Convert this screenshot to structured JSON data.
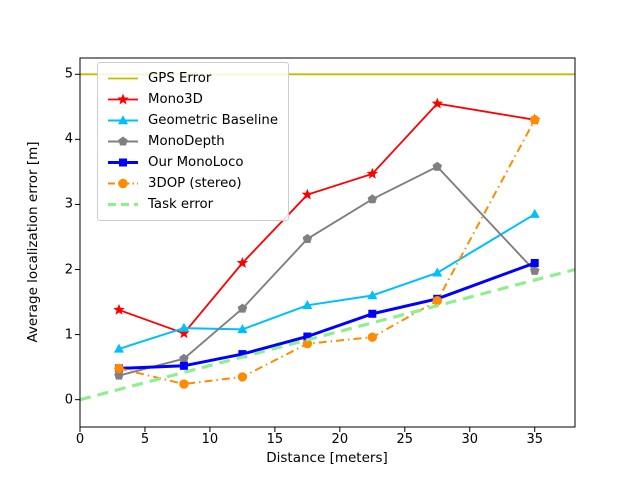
{
  "chart_data": {
    "type": "line",
    "title": "",
    "xlabel": "Distance [meters]",
    "ylabel": "Average localization error [m]",
    "xlim": [
      0,
      38.1
    ],
    "ylim": [
      -0.42,
      5.25
    ],
    "xticks": [
      0,
      5,
      10,
      15,
      20,
      25,
      30,
      35
    ],
    "yticks": [
      0,
      1,
      2,
      3,
      4,
      5
    ],
    "grid": false,
    "legend_position": "upper-left",
    "x": [
      3,
      8,
      12.5,
      17.5,
      22.5,
      27.5,
      35
    ],
    "series": [
      {
        "name": "GPS Error",
        "color": "#bfbf00",
        "style": "solid",
        "marker": "none",
        "width": 1.8,
        "x": [
          0,
          38.1
        ],
        "values": [
          5.0,
          5.0
        ]
      },
      {
        "name": "Mono3D",
        "color": "#ff0000",
        "style": "solid",
        "marker": "star",
        "width": 1.8,
        "values": [
          1.38,
          1.02,
          2.1,
          3.15,
          3.47,
          4.55,
          4.3
        ]
      },
      {
        "name": "Geometric Baseline",
        "color": "#00bfff",
        "style": "solid",
        "marker": "triangle",
        "width": 2.0,
        "values": [
          0.78,
          1.1,
          1.08,
          1.45,
          1.6,
          1.95,
          2.85
        ]
      },
      {
        "name": "MonoDepth",
        "color": "#808080",
        "style": "solid",
        "marker": "pentagon",
        "width": 1.9,
        "values": [
          0.37,
          0.63,
          1.4,
          2.47,
          3.08,
          3.58,
          1.98
        ]
      },
      {
        "name": "Our MonoLoco",
        "color": "#0000ff",
        "style": "solid",
        "marker": "square",
        "width": 3.0,
        "values": [
          0.48,
          0.52,
          0.7,
          0.97,
          1.32,
          1.55,
          2.1
        ]
      },
      {
        "name": "3DOP (stereo)",
        "color": "#ff8c00",
        "style": "dashdot",
        "marker": "circle",
        "width": 2.0,
        "values": [
          0.48,
          0.24,
          0.35,
          0.86,
          0.96,
          1.52,
          4.3
        ]
      },
      {
        "name": "Task error",
        "color": "#90ee90",
        "style": "dashed",
        "marker": "none",
        "width": 3.2,
        "x": [
          0,
          38.1
        ],
        "values": [
          0.0,
          2.0
        ]
      }
    ]
  },
  "figure": {
    "background": "#ffffff",
    "spine_color": "#000000"
  }
}
